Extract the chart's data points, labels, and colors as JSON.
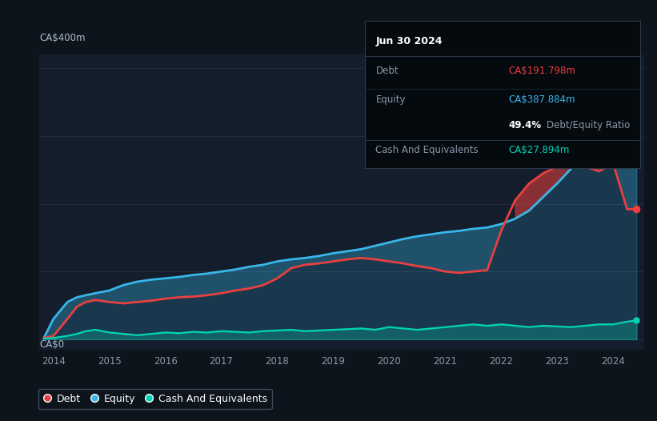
{
  "bg_color": "#0e141b",
  "plot_bg_color": "#141d2b",
  "y_label": "CA$400m",
  "y_label_zero": "CA$0",
  "x_ticks": [
    "2014",
    "2015",
    "2016",
    "2017",
    "2018",
    "2019",
    "2020",
    "2021",
    "2022",
    "2023",
    "2024"
  ],
  "debt_color": "#e84040",
  "equity_color": "#38b6e8",
  "cash_color": "#00d4b4",
  "legend_labels": [
    "Debt",
    "Equity",
    "Cash And Equivalents"
  ],
  "tooltip_title": "Jun 30 2024",
  "tooltip_debt_label": "Debt",
  "tooltip_debt_value": "CA$191.798m",
  "tooltip_equity_label": "Equity",
  "tooltip_equity_value": "CA$387.884m",
  "tooltip_ratio": "49.4%",
  "tooltip_ratio_text": "Debt/Equity Ratio",
  "tooltip_cash_label": "Cash And Equivalents",
  "tooltip_cash_value": "CA$27.894m",
  "years": [
    2013.83,
    2014.0,
    2014.25,
    2014.42,
    2014.58,
    2014.75,
    2015.0,
    2015.25,
    2015.5,
    2015.75,
    2016.0,
    2016.25,
    2016.5,
    2016.75,
    2017.0,
    2017.25,
    2017.5,
    2017.75,
    2018.0,
    2018.25,
    2018.5,
    2018.75,
    2019.0,
    2019.25,
    2019.5,
    2019.75,
    2020.0,
    2020.25,
    2020.5,
    2020.75,
    2021.0,
    2021.25,
    2021.5,
    2021.75,
    2022.0,
    2022.25,
    2022.5,
    2022.75,
    2023.0,
    2023.25,
    2023.5,
    2023.75,
    2024.0,
    2024.25,
    2024.42
  ],
  "debt": [
    2,
    5,
    30,
    48,
    55,
    58,
    55,
    53,
    55,
    57,
    60,
    62,
    63,
    65,
    68,
    72,
    75,
    80,
    90,
    105,
    110,
    112,
    115,
    118,
    120,
    118,
    115,
    112,
    108,
    105,
    100,
    98,
    100,
    102,
    160,
    205,
    230,
    245,
    255,
    260,
    255,
    248,
    260,
    192,
    192
  ],
  "equity": [
    2,
    30,
    55,
    62,
    65,
    68,
    72,
    80,
    85,
    88,
    90,
    92,
    95,
    97,
    100,
    103,
    107,
    110,
    115,
    118,
    120,
    123,
    127,
    130,
    133,
    138,
    143,
    148,
    152,
    155,
    158,
    160,
    163,
    165,
    170,
    178,
    190,
    210,
    230,
    252,
    272,
    298,
    330,
    388,
    388
  ],
  "cash": [
    1,
    2,
    5,
    8,
    12,
    14,
    10,
    8,
    6,
    8,
    10,
    9,
    11,
    10,
    12,
    11,
    10,
    12,
    13,
    14,
    12,
    13,
    14,
    15,
    16,
    14,
    18,
    16,
    14,
    16,
    18,
    20,
    22,
    20,
    22,
    20,
    18,
    20,
    19,
    18,
    20,
    22,
    22,
    26,
    28
  ],
  "ylim_max": 420,
  "xlim_min": 2013.75,
  "xlim_max": 2024.55
}
